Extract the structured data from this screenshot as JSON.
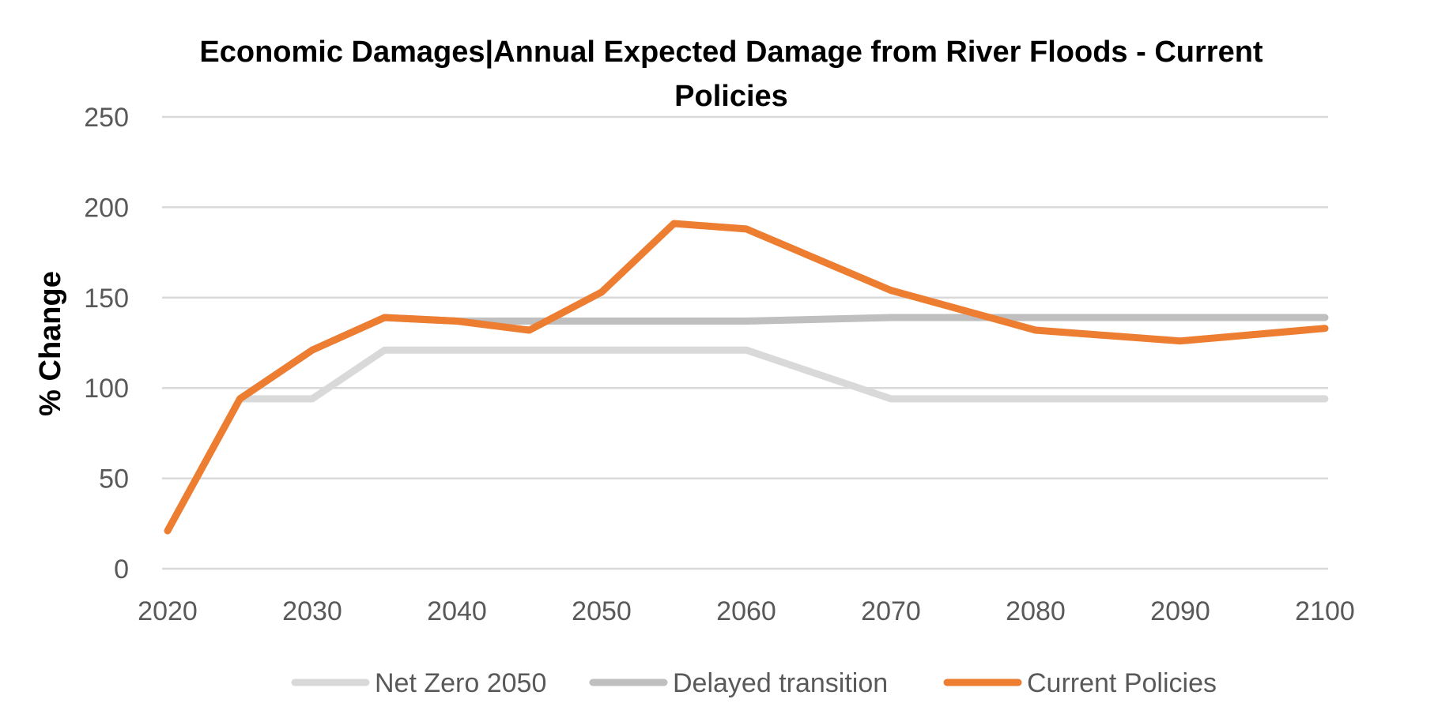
{
  "chart_data": {
    "type": "line",
    "title": "Economic Damages|Annual Expected Damage from River Floods - Current Policies",
    "title_lines": [
      "Economic Damages|Annual Expected Damage from River Floods - Current",
      "Policies"
    ],
    "xlabel": "",
    "ylabel": "% Change",
    "ylim": [
      0,
      250
    ],
    "yticks": [
      "0",
      "50",
      "100",
      "150",
      "200",
      "250"
    ],
    "xlim": [
      2020,
      2100
    ],
    "xticks": [
      "2020",
      "2030",
      "2040",
      "2050",
      "2060",
      "2070",
      "2080",
      "2090",
      "2100"
    ],
    "grid": true,
    "legend_position": "bottom",
    "series": [
      {
        "name": "Net Zero 2050",
        "color": "#d9d9d9",
        "points": [
          [
            2025,
            94
          ],
          [
            2030,
            94
          ],
          [
            2035,
            121
          ],
          [
            2040,
            121
          ],
          [
            2045,
            121
          ],
          [
            2050,
            121
          ],
          [
            2055,
            121
          ],
          [
            2060,
            121
          ],
          [
            2070,
            94
          ],
          [
            2080,
            94
          ],
          [
            2090,
            94
          ],
          [
            2100,
            94
          ]
        ]
      },
      {
        "name": "Delayed transition",
        "color": "#bfbfbf",
        "points": [
          [
            2025,
            94
          ],
          [
            2030,
            121
          ],
          [
            2035,
            139
          ],
          [
            2040,
            137
          ],
          [
            2045,
            137
          ],
          [
            2050,
            137
          ],
          [
            2055,
            137
          ],
          [
            2060,
            137
          ],
          [
            2070,
            139
          ],
          [
            2080,
            139
          ],
          [
            2090,
            139
          ],
          [
            2100,
            139
          ]
        ]
      },
      {
        "name": "Current Policies",
        "color": "#ed7d31",
        "points": [
          [
            2020,
            21
          ],
          [
            2025,
            94
          ],
          [
            2030,
            121
          ],
          [
            2035,
            139
          ],
          [
            2040,
            137
          ],
          [
            2045,
            132
          ],
          [
            2050,
            153
          ],
          [
            2055,
            191
          ],
          [
            2060,
            188
          ],
          [
            2070,
            154
          ],
          [
            2080,
            132
          ],
          [
            2090,
            126
          ],
          [
            2100,
            133
          ]
        ]
      }
    ]
  }
}
